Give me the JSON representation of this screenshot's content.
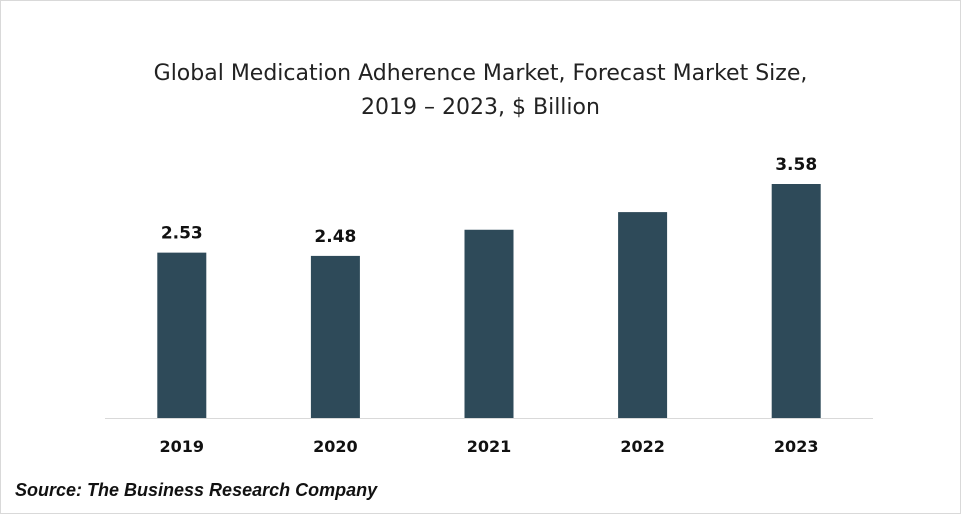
{
  "chart_data": {
    "type": "bar",
    "title_lines": [
      "Global Medication Adherence Market, Forecast Market Size,",
      "2019 – 2023, $ Billion"
    ],
    "categories": [
      "2019",
      "2020",
      "2021",
      "2022",
      "2023"
    ],
    "values": [
      2.53,
      2.48,
      2.88,
      3.15,
      3.58
    ],
    "data_labels": [
      "2.53",
      "2.48",
      "",
      "",
      "3.58"
    ],
    "bar_color": "#2e4a59",
    "axis_color": "#d9d9d9",
    "ylim": [
      0,
      4.2
    ],
    "grid": false,
    "legend": "none"
  },
  "source": "Source: The Business Research Company"
}
